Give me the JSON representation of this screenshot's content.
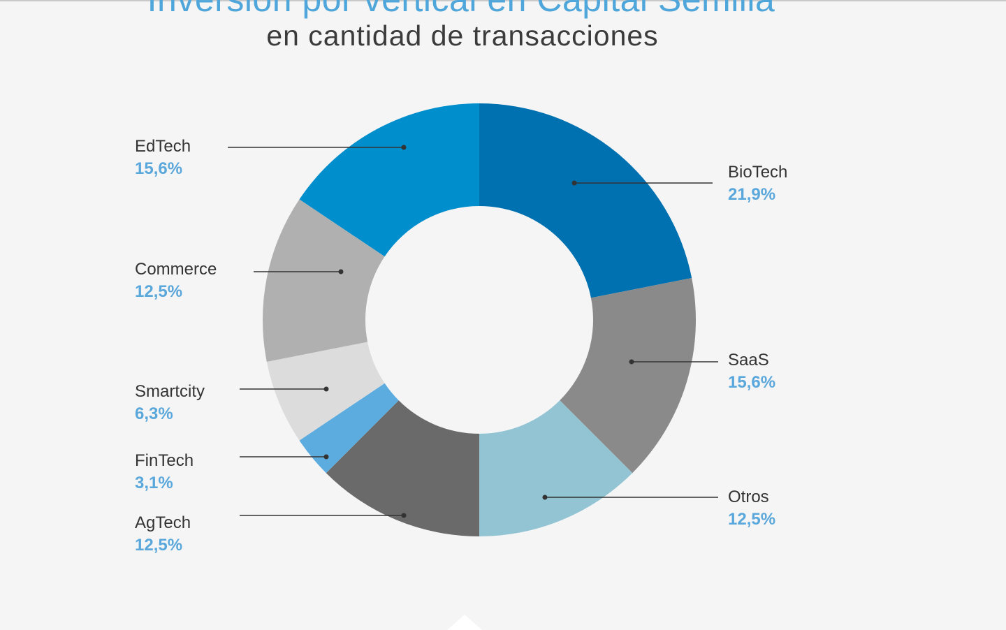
{
  "header": {
    "title": "Inversión por vertical en Capital Semilla",
    "subtitle": "en cantidad de transacciones"
  },
  "chart_data": {
    "type": "pie",
    "title": "Inversión por vertical en Capital Semilla",
    "subtitle": "en cantidad de transacciones",
    "slices": [
      {
        "name": "BioTech",
        "value": 21.9,
        "label": "21,9%",
        "color": "#0071b0"
      },
      {
        "name": "SaaS",
        "value": 15.6,
        "label": "15,6%",
        "color": "#8a8a8a"
      },
      {
        "name": "Otros",
        "value": 12.5,
        "label": "12,5%",
        "color": "#92c4d3"
      },
      {
        "name": "AgTech",
        "value": 12.5,
        "label": "12,5%",
        "color": "#6a6a6a"
      },
      {
        "name": "FinTech",
        "value": 3.1,
        "label": "3,1%",
        "color": "#5dace0"
      },
      {
        "name": "Smartcity",
        "value": 6.3,
        "label": "6,3%",
        "color": "#dcdcdc"
      },
      {
        "name": "Commerce",
        "value": 12.5,
        "label": "12,5%",
        "color": "#b0b0b0"
      },
      {
        "name": "EdTech",
        "value": 15.6,
        "label": "15,6%",
        "color": "#008ecc"
      }
    ]
  }
}
